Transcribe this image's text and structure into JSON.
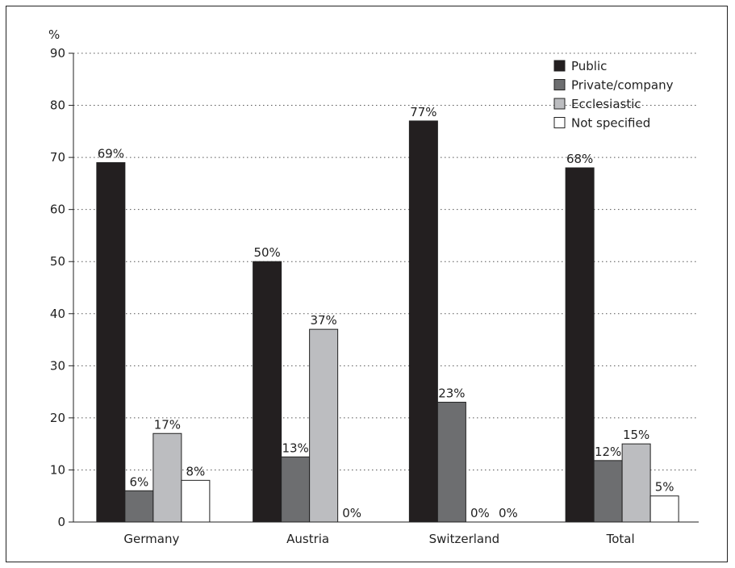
{
  "chart_data": {
    "type": "bar",
    "ylabel": "%",
    "ylim": [
      0,
      90
    ],
    "yticks": [
      0,
      10,
      20,
      30,
      40,
      50,
      60,
      70,
      80,
      90
    ],
    "grid": "horizontal-dotted",
    "legend_position": "top-right",
    "categories": [
      "Germany",
      "Austria",
      "Switzerland",
      "Total"
    ],
    "series": [
      {
        "name": "Public",
        "color": "#231f20",
        "values": [
          69,
          50,
          77,
          68
        ],
        "labels": [
          "69%",
          "50%",
          "77%",
          "68%"
        ]
      },
      {
        "name": "Private/company",
        "color": "#6d6e70",
        "values": [
          6,
          12.5,
          23,
          11.8
        ],
        "labels": [
          "6%",
          "13%",
          "23%",
          "12%"
        ]
      },
      {
        "name": "Ecclesiastic",
        "color": "#bcbdc0",
        "values": [
          17,
          37,
          0,
          15
        ],
        "labels": [
          "17%",
          "37%",
          "0%",
          "15%"
        ]
      },
      {
        "name": "Not specified",
        "color": "#ffffff",
        "values": [
          8,
          0,
          0,
          5
        ],
        "labels": [
          "8%",
          "0%",
          "0%",
          "5%"
        ]
      }
    ]
  }
}
